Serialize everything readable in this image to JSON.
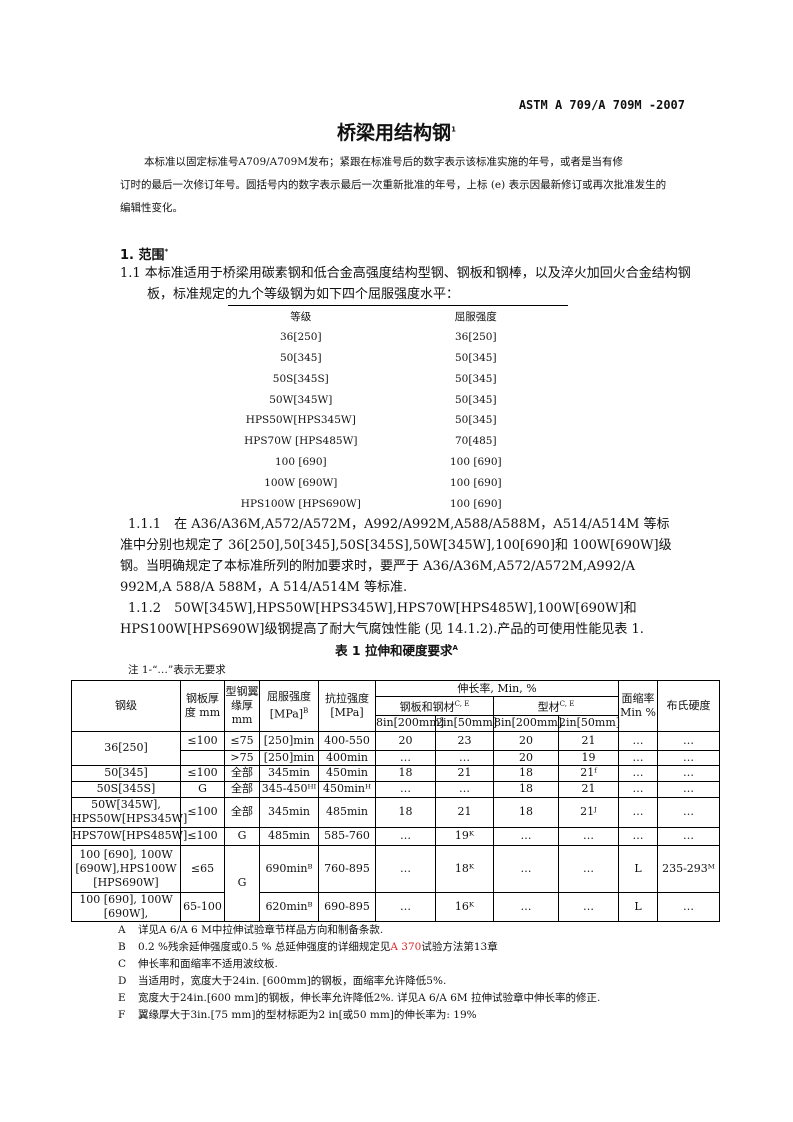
{
  "header": {
    "standard_no": "ASTM A 709/A 709M -2007",
    "title": "桥梁用结构钢",
    "title_sup": "1"
  },
  "intro": {
    "line1": "本标准以固定标准号A709/A709M发布；紧跟在标准号后的数字表示该标准实施的年号，或者是当有修",
    "line2": "订时的最后一次修订年号。圆括号内的数字表示最后一次重新批准的年号，上标 (e) 表示因最新修订或再次批准发生的编辑性变化。"
  },
  "section1": {
    "heading": "1. 范围",
    "sup": "*",
    "p11": "1.1 本标准适用于桥梁用碳素钢和低合金高强度结构型钢、钢板和钢棒，以及淬火加回火合金结构钢板，标准规定的九个等级钢为如下四个屈服强度水平：",
    "grade_table": {
      "headers": [
        "等级",
        "屈服强度"
      ],
      "rows": [
        [
          "36[250]",
          "36[250]"
        ],
        [
          "50[345]",
          "50[345]"
        ],
        [
          "50S[345S]",
          "50[345]"
        ],
        [
          "50W[345W]",
          "50[345]"
        ],
        [
          "HPS50W[HPS345W]",
          "50[345]"
        ],
        [
          "HPS70W [HPS485W]",
          "70[485]"
        ],
        [
          "100 [690]",
          "100 [690]"
        ],
        [
          "100W [690W]",
          "100 [690]"
        ],
        [
          "HPS100W [HPS690W]",
          "100 [690]"
        ]
      ]
    },
    "p111": "1.1.1　在 A36/A36M,A572/A572M，A992/A992M,A588/A588M，A514/A514M 等标准中分别也规定了 36[250],50[345],50S[345S],50W[345W],100[690]和 100W[690W]级钢。当明确规定了本标准所列的附加要求时，要严于 A36/A36M,A572/A572M,A992/A 992M,A 588/A 588M，A 514/A514M 等标准.",
    "p112": "1.1.2　50W[345W],HPS50W[HPS345W],HPS70W[HPS485W],100W[690W]和 HPS100W[HPS690W]级钢提高了耐大气腐蚀性能 (见 14.1.2).产品的可使用性能见表 1."
  },
  "table1": {
    "title": "表 1 拉伸和硬度要求",
    "title_sup": "A",
    "note": "注 1-“…”表示无要求",
    "headers": {
      "grade": "钢级",
      "plate_thk": "钢板厚度 mm",
      "flange_thk": "型钢翼缘厚 mm",
      "yield": "屈服强度 [MPa]",
      "yield_sup": "B",
      "tensile": "抗拉强度 [MPa]",
      "elong": "伸长率, Min, %",
      "plates_bars": "钢板和钢材",
      "plates_sup": "C, E",
      "shapes": "型材",
      "shapes_sup": "C, E",
      "in8": "8in[200mm]",
      "in2": "2in[50mm]",
      "ra": "面缩率 Min %",
      "hb": "布氏硬度"
    },
    "rows": [
      [
        "36[250]",
        "≤100",
        "≤75",
        "[250]min",
        "400-550",
        "20",
        "23",
        "20",
        "21",
        "…",
        "…"
      ],
      [
        "",
        "",
        ">75",
        "[250]min",
        "400min",
        "…",
        "…",
        "20",
        "19",
        "…",
        "…"
      ],
      [
        "50[345]",
        "≤100",
        "全部",
        "345min",
        "450min",
        "18",
        "21",
        "18",
        "21ᶠ",
        "…",
        "…"
      ],
      [
        "50S[345S]",
        "G",
        "全部",
        "345-450ᴴᴵ",
        "450minᴴ",
        "…",
        "…",
        "18",
        "21",
        "…",
        "…"
      ],
      [
        "50W[345W], HPS50W[HPS345W]",
        "≤100",
        "全部",
        "345min",
        "485min",
        "18",
        "21",
        "18",
        "21ᴶ",
        "…",
        "…"
      ],
      [
        "HPS70W[HPS485W]",
        "≤100",
        "G",
        "485min",
        "585-760",
        "…",
        "19ᴷ",
        "…",
        "…",
        "…",
        "…"
      ],
      [
        "100 [690], 100W [690W],HPS100W [HPS690W]",
        "≤65",
        "G",
        "690minᴮ",
        "760-895",
        "…",
        "18ᴷ",
        "…",
        "…",
        "L",
        "235-293ᴹ"
      ],
      [
        "100 [690], 100W [690W],",
        "65-100",
        "",
        "620minᴮ",
        "690-895",
        "…",
        "16ᴷ",
        "…",
        "…",
        "L",
        "…"
      ]
    ]
  },
  "footnotes": [
    {
      "k": "A",
      "t": "详见A 6/A 6 M中拉伸试验章节样品方向和制备条款."
    },
    {
      "k": "B",
      "t": "0.2 %残余延伸强度或0.5 % 总延伸强度的详细规定见",
      "red": "A 370",
      "t2": "试验方法第13章"
    },
    {
      "k": "C",
      "t": "伸长率和面缩率不适用波纹板."
    },
    {
      "k": "D",
      "t": "当适用时，宽度大于24in. [600mm]的钢板，面缩率允许降低5%."
    },
    {
      "k": "E",
      "t": "宽度大于24in.[600 mm]的钢板，伸长率允许降低2%. 详见A 6/A 6M 拉伸试验章中伸长率的修正."
    },
    {
      "k": "F",
      "t": "翼缘厚大于3in.[75 mm]的型材标距为2 in[或50 mm]的伸长率为: 19%"
    }
  ],
  "colors": {
    "link_red": "#dd2222"
  }
}
